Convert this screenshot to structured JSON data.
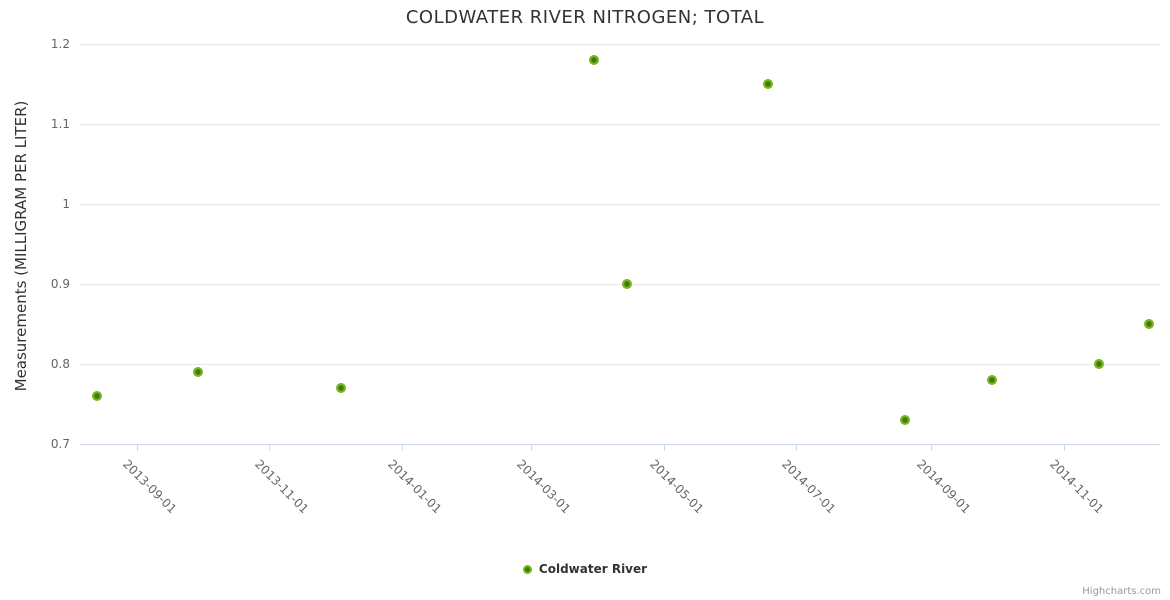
{
  "chart": {
    "credit_label": "Highcharts.com"
  },
  "chart_data": {
    "type": "scatter",
    "title": "COLDWATER RIVER NITROGEN; TOTAL",
    "xlabel": "",
    "ylabel": "Measurements (MILLIGRAM PER LITER)",
    "ylim": [
      0.7,
      1.2
    ],
    "y_ticks": [
      0.7,
      0.8,
      0.9,
      1,
      1.1,
      1.2
    ],
    "y_tick_labels": [
      "0.7",
      "0.8",
      "0.9",
      "1",
      "1.1",
      "1.2"
    ],
    "x_ticks": [
      "2013-09-01",
      "2013-11-01",
      "2014-01-01",
      "2014-03-01",
      "2014-05-01",
      "2014-07-01",
      "2014-09-01",
      "2014-11-01"
    ],
    "x_range": [
      "2013-08-06",
      "2014-12-15"
    ],
    "grid": "horizontal",
    "legend_position": "bottom-center",
    "series": [
      {
        "name": "Coldwater River",
        "points": [
          {
            "date": "2013-08-14",
            "value": 0.76
          },
          {
            "date": "2013-09-29",
            "value": 0.79
          },
          {
            "date": "2013-12-04",
            "value": 0.77
          },
          {
            "date": "2014-03-30",
            "value": 1.18
          },
          {
            "date": "2014-04-14",
            "value": 0.9
          },
          {
            "date": "2014-06-18",
            "value": 1.15
          },
          {
            "date": "2014-08-20",
            "value": 0.73
          },
          {
            "date": "2014-09-29",
            "value": 0.78
          },
          {
            "date": "2014-11-17",
            "value": 0.8
          },
          {
            "date": "2014-12-10",
            "value": 0.85
          }
        ]
      }
    ],
    "colors": {
      "marker_outer": "#77b41e",
      "marker_inner": "#3e7a05",
      "gridline": "#e6e6e6",
      "axis_line": "#ccd6eb",
      "tick_label": "#666666",
      "title": "#333333",
      "credit": "#999999",
      "background": "#ffffff"
    }
  }
}
